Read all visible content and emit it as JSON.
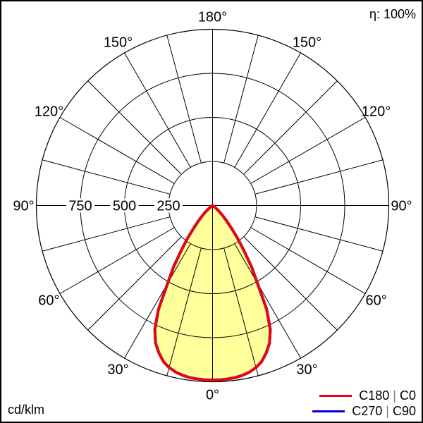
{
  "header": {
    "efficiency_label": "η: 100%"
  },
  "footer": {
    "unit_label": "cd/klm"
  },
  "legend": [
    {
      "plane_a": "C180",
      "separator": "|",
      "plane_b": "C0",
      "color": "#e30613"
    },
    {
      "plane_a": "C270",
      "separator": "|",
      "plane_b": "C90",
      "color": "#0000dd"
    }
  ],
  "chart_data": {
    "type": "line",
    "subtype": "polar-luminous-intensity",
    "title": "Polar luminous intensity distribution",
    "unit": "cd/klm",
    "efficiency_text": "η: 100%",
    "angle_tick_labels_deg": [
      0,
      30,
      60,
      90,
      120,
      150,
      180
    ],
    "angle_grid_step_deg": 15,
    "r_ticks": [
      250,
      500,
      750
    ],
    "r_max": 1000,
    "grid_color": "#000000",
    "legend_position": "bottom-right",
    "series": [
      {
        "name": "C180 | C0",
        "color": "#e30613",
        "fill": "#ffff9c",
        "symmetric": true,
        "gamma_deg": [
          0,
          2.5,
          5,
          7.5,
          10,
          12.5,
          15,
          17.5,
          20,
          22.5,
          25,
          27.5,
          30,
          32.5,
          35,
          37.5,
          40,
          42.5,
          45,
          47.5,
          50,
          52.5,
          55,
          57.5,
          60,
          90,
          120,
          150,
          180
        ],
        "values": [
          990,
          990,
          988,
          985,
          978,
          968,
          952,
          928,
          890,
          845,
          775,
          665,
          510,
          410,
          305,
          230,
          163,
          118,
          82,
          55,
          34,
          18,
          8,
          2,
          0,
          0,
          0,
          0,
          0
        ]
      },
      {
        "name": "C270 | C90",
        "color": "#0000dd",
        "fill": null,
        "symmetric": true,
        "gamma_deg": [
          0,
          2.5,
          5,
          7.5,
          10,
          12.5,
          15,
          17.5,
          20,
          22.5,
          25,
          27.5,
          30,
          32.5,
          35,
          37.5,
          40,
          42.5,
          45,
          47.5,
          50,
          52.5,
          55,
          57.5,
          60,
          90,
          120,
          150,
          180
        ],
        "values": [
          990,
          990,
          988,
          985,
          978,
          968,
          952,
          928,
          890,
          845,
          775,
          665,
          510,
          410,
          305,
          230,
          163,
          118,
          82,
          55,
          34,
          18,
          8,
          2,
          0,
          0,
          0,
          0,
          0
        ]
      }
    ]
  }
}
